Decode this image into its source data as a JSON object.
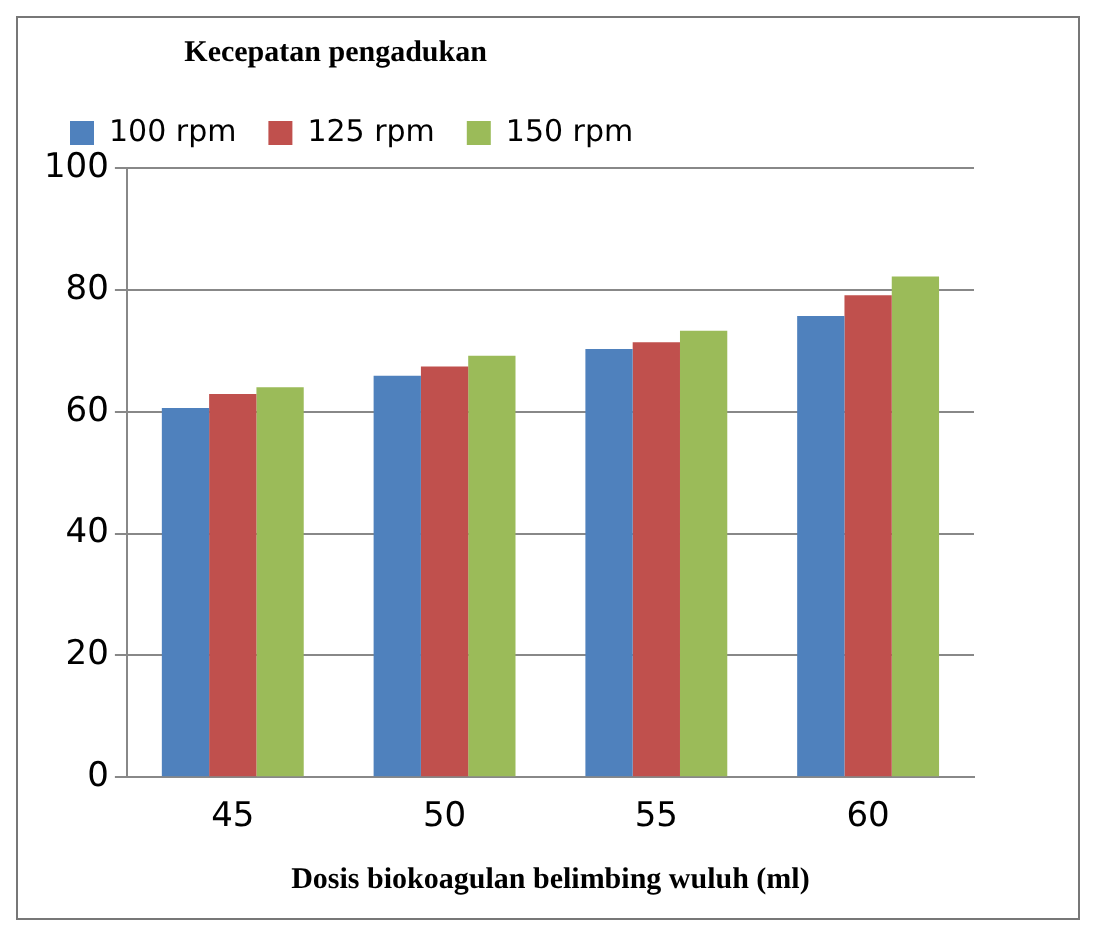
{
  "chart_data": {
    "type": "bar",
    "legend_title": "Kecepatan pengadukan",
    "xlabel": "Dosis biokoagulan belimbing wuluh (ml)",
    "categories": [
      "45",
      "50",
      "55",
      "60"
    ],
    "series": [
      {
        "name": "100 rpm",
        "color": "#4f81bd",
        "values": [
          60.6,
          65.9,
          70.3,
          75.7
        ]
      },
      {
        "name": "125 rpm",
        "color": "#c0504d",
        "values": [
          62.9,
          67.4,
          71.4,
          79.1
        ]
      },
      {
        "name": "150 rpm",
        "color": "#9bbb59",
        "values": [
          64.0,
          69.2,
          73.3,
          82.2
        ]
      }
    ],
    "ylim": [
      0,
      100
    ],
    "yticks": [
      0,
      20,
      40,
      60,
      80,
      100
    ],
    "grid": "y",
    "legend": "top left"
  }
}
